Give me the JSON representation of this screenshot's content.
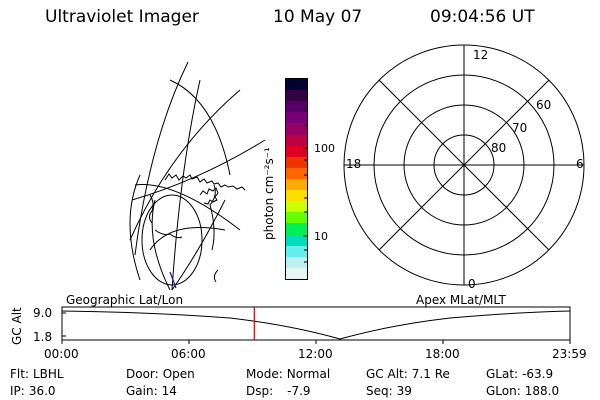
{
  "header": {
    "instrument": "Ultraviolet Imager",
    "date": "10 May 07",
    "time": "09:04:56 UT"
  },
  "colorbar": {
    "unit_label": "photon cm⁻²s⁻¹",
    "tick_labels": [
      "100",
      "10"
    ],
    "colors": [
      "#000033",
      "#330044",
      "#550066",
      "#770077",
      "#990066",
      "#bb0044",
      "#dd0022",
      "#ee3300",
      "#ff6600",
      "#ffaa00",
      "#ffdd00",
      "#ccff00",
      "#66ff00",
      "#00ee55",
      "#00ddbb",
      "#66eeee",
      "#bbf0f0",
      "#e6f4f4"
    ]
  },
  "polar_plot": {
    "top_label": "12",
    "bottom_label": "0",
    "left_label": "18",
    "right_label": "6",
    "ring_labels": [
      "60",
      "70",
      "80"
    ]
  },
  "timeline": {
    "left_title": "Geographic Lat/Lon",
    "right_title": "Apex MLat/MLT",
    "y_axis_label": "GC Alt",
    "y_ticks": [
      "9.0",
      "1.8"
    ],
    "x_ticks": [
      "00:00",
      "06:00",
      "12:00",
      "18:00",
      "23:59"
    ],
    "current_time_fraction": 0.3785,
    "marker_color": "#cc0000"
  },
  "status": {
    "filter_label": "Flt:",
    "filter_value": "LBHL",
    "ip_label": "IP:",
    "ip_value": "36.0",
    "door_label": "Door:",
    "door_value": "Open",
    "gain_label": "Gain:",
    "gain_value": "14",
    "mode_label": "Mode:",
    "mode_value": "Normal",
    "dsp_label": "Dsp:",
    "dsp_value": "-7.9",
    "gcalt_label": "GC Alt:",
    "gcalt_value": "7.1 Re",
    "seq_label": "Seq:",
    "seq_value": "39",
    "glat_label": "GLat:",
    "glat_value": "-63.9",
    "glon_label": "GLon:",
    "glon_value": "188.0"
  }
}
